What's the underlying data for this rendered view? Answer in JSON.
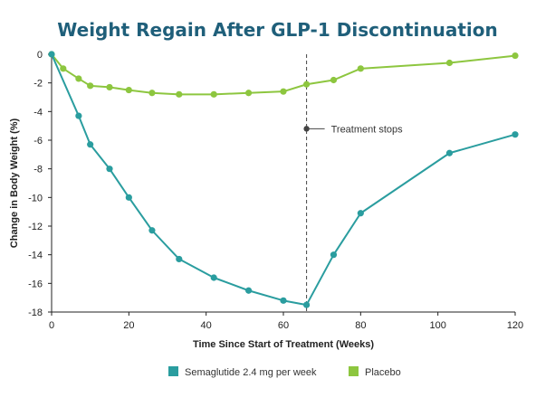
{
  "chart_data": {
    "type": "line",
    "title": "Weight Regain After GLP-1 Discontinuation",
    "xlabel": "Time Since Start of Treatment (Weeks)",
    "ylabel": "Change in Body Weight (%)",
    "xlim": [
      0,
      120
    ],
    "ylim": [
      -18,
      0
    ],
    "xticks": [
      0,
      20,
      40,
      60,
      80,
      100,
      120
    ],
    "yticks": [
      0,
      -2,
      -4,
      -6,
      -8,
      -10,
      -12,
      -14,
      -16,
      -18
    ],
    "grid": false,
    "legend_position": "bottom",
    "colors": {
      "title": "#1f5f7a",
      "semaglutide": "#2a9d9f",
      "placebo": "#8dc63f",
      "axis": "#222222",
      "annotation": "#444444"
    },
    "series": [
      {
        "name": "Semaglutide 2.4 mg per week",
        "x": [
          0,
          7,
          10,
          15,
          20,
          26,
          33,
          42,
          51,
          60,
          66,
          73,
          80,
          103,
          120
        ],
        "y": [
          0,
          -4.3,
          -6.3,
          -8.0,
          -10.0,
          -12.3,
          -14.3,
          -15.6,
          -16.5,
          -17.2,
          -17.5,
          -14.0,
          -11.1,
          -6.9,
          -5.6
        ]
      },
      {
        "name": "Placebo",
        "x": [
          0,
          3,
          7,
          10,
          15,
          20,
          26,
          33,
          42,
          51,
          60,
          66,
          73,
          80,
          103,
          120
        ],
        "y": [
          0,
          -1.0,
          -1.7,
          -2.2,
          -2.3,
          -2.5,
          -2.7,
          -2.8,
          -2.8,
          -2.7,
          -2.6,
          -2.1,
          -1.8,
          -1.0,
          -0.6,
          -0.1
        ]
      }
    ],
    "annotations": [
      {
        "x": 66,
        "y": -5.2,
        "text": "Treatment stops"
      }
    ]
  }
}
